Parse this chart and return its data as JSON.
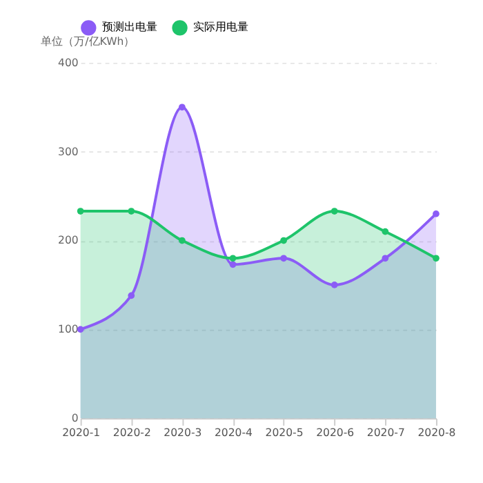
{
  "chart_data": {
    "type": "area",
    "ylabel": "单位（万/亿KWh）",
    "categories": [
      "2020-1",
      "2020-2",
      "2020-3",
      "2020-4",
      "2020-5",
      "2020-6",
      "2020-7",
      "2020-8"
    ],
    "series": [
      {
        "name": "预测出电量",
        "color": "#8b5cf6",
        "values": [
          100,
          138,
          350,
          173,
          180,
          150,
          180,
          230
        ]
      },
      {
        "name": "实际用电量",
        "color": "#1ec46a",
        "values": [
          233,
          233,
          200,
          180,
          200,
          233,
          210,
          180
        ]
      }
    ],
    "ylim": [
      0,
      400
    ],
    "yticks": [
      0,
      100,
      200,
      300,
      400
    ],
    "grid": "y",
    "legend": "top",
    "marker": "circle",
    "line_style": "solid"
  }
}
